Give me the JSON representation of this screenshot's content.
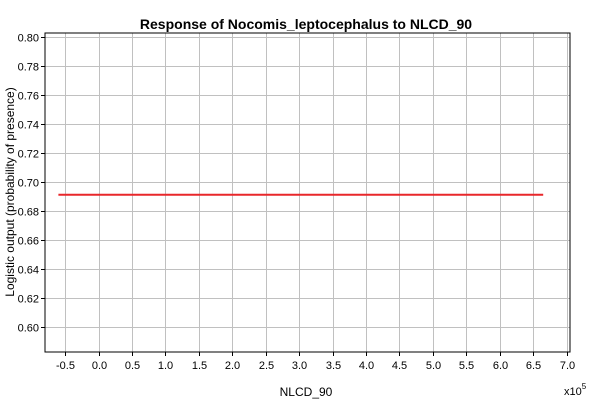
{
  "chart_data": {
    "type": "line",
    "title": "Response of Nocomis_leptocephalus to NLCD_90",
    "xlabel": "NLCD_90",
    "ylabel": "Logistic output (probability of presence)",
    "x_multiplier_base": "x10",
    "x_multiplier_exp": "5",
    "xlim": [
      -0.8,
      7.05
    ],
    "ylim": [
      0.583,
      0.803
    ],
    "x_ticks": [
      -0.5,
      0.0,
      0.5,
      1.0,
      1.5,
      2.0,
      2.5,
      3.0,
      3.5,
      4.0,
      4.5,
      5.0,
      5.5,
      6.0,
      6.5,
      7.0
    ],
    "x_tick_labels": [
      "-0.5",
      "0.0",
      "0.5",
      "1.0",
      "1.5",
      "2.0",
      "2.5",
      "3.0",
      "3.5",
      "4.0",
      "4.5",
      "5.0",
      "5.5",
      "6.0",
      "6.5",
      "7.0"
    ],
    "y_ticks": [
      0.6,
      0.62,
      0.64,
      0.66,
      0.68,
      0.7,
      0.72,
      0.74,
      0.76,
      0.78,
      0.8
    ],
    "y_tick_labels": [
      "0.60",
      "0.62",
      "0.64",
      "0.66",
      "0.68",
      "0.70",
      "0.72",
      "0.74",
      "0.76",
      "0.78",
      "0.80"
    ],
    "grid": true,
    "series": [
      {
        "color": "#e8272a",
        "x": [
          -0.6,
          6.65
        ],
        "y": [
          0.6915,
          0.6915
        ]
      }
    ]
  }
}
